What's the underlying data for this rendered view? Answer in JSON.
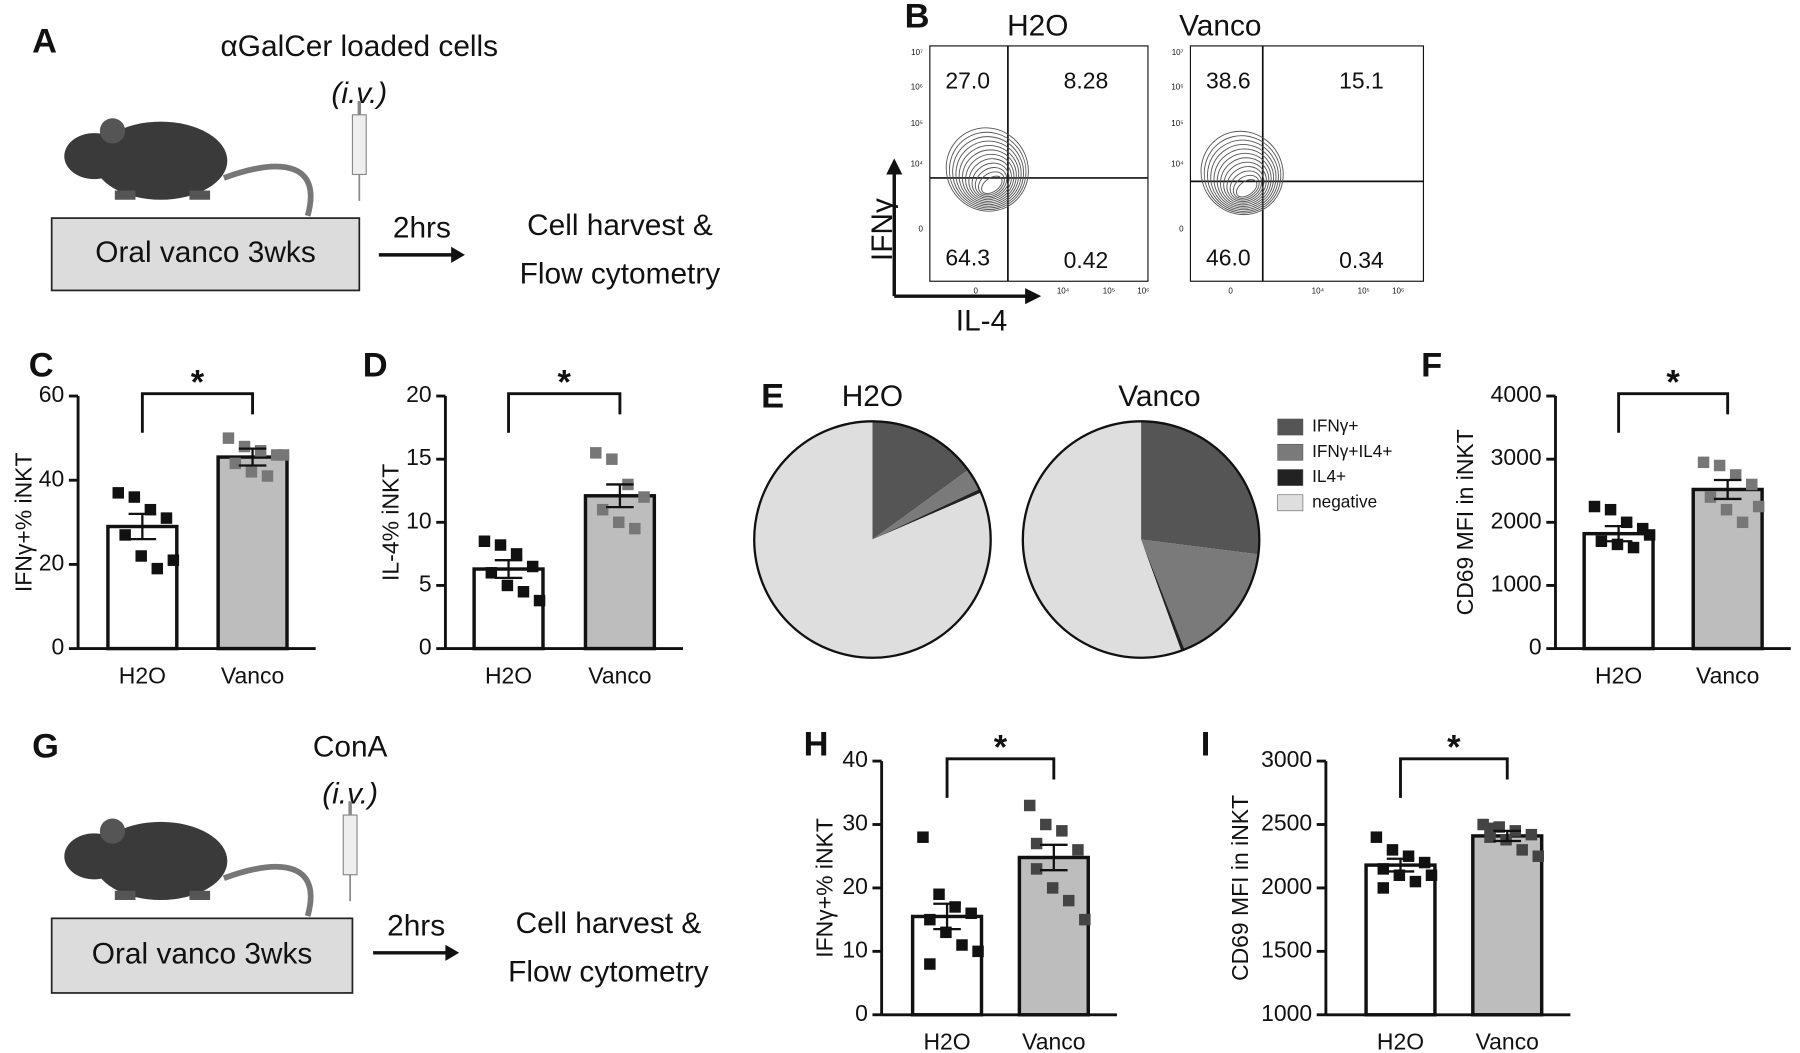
{
  "panel_labels": [
    "A",
    "B",
    "C",
    "D",
    "E",
    "F",
    "G",
    "H",
    "I"
  ],
  "diagrams": [
    {
      "injection": "αGalCer loaded cells",
      "route": "(i.v.)",
      "treatment": "Oral vanco 3wks",
      "time": "2hrs",
      "readout": [
        "Cell harvest &",
        "Flow cytometry"
      ]
    },
    {
      "injection": "ConA",
      "route": "(i.v.)",
      "treatment": "Oral vanco 3wks",
      "time": "2hrs",
      "readout": [
        "Cell harvest &",
        "Flow cytometry"
      ]
    }
  ],
  "flow": {
    "y_label": "IFNγ",
    "x_label": "IL-4",
    "yticks": [
      "10⁷",
      "10⁶",
      "10⁵",
      "10⁴",
      "0"
    ],
    "xticks": [
      "0",
      "10⁴",
      "10⁵",
      "10⁶"
    ],
    "plots": [
      {
        "title": "H2O",
        "quadrants": [
          "27.0",
          "8.28",
          "64.3",
          "0.42"
        ]
      },
      {
        "title": "Vanco",
        "quadrants": [
          "38.6",
          "15.1",
          "46.0",
          "0.34"
        ]
      }
    ]
  },
  "chart_data": [
    {
      "type": "bar",
      "y_label": "IFNγ+% iNKT",
      "categories": [
        "H2O",
        "Vanco"
      ],
      "values": [
        29,
        45.5
      ],
      "errors": [
        3,
        2
      ],
      "points": [
        [
          37,
          36,
          33,
          31,
          27,
          22,
          19,
          21
        ],
        [
          50,
          48,
          47,
          46,
          44,
          42,
          41,
          46
        ]
      ],
      "colors": [
        "#ffffff",
        "#bdbdbd"
      ],
      "point_colors": [
        "#111111",
        "#777777"
      ],
      "ylim": [
        0,
        60
      ],
      "yticks": [
        0,
        20,
        40,
        60
      ],
      "significance": "*"
    },
    {
      "type": "bar",
      "y_label": "IL-4% iNKT",
      "categories": [
        "H2O",
        "Vanco"
      ],
      "values": [
        6.3,
        12.1
      ],
      "errors": [
        0.7,
        0.9
      ],
      "points": [
        [
          8.5,
          8.2,
          7.5,
          6.5,
          6,
          5,
          4.5,
          3.8
        ],
        [
          15.5,
          15,
          13,
          12,
          11,
          10,
          9.5
        ]
      ],
      "colors": [
        "#ffffff",
        "#bdbdbd"
      ],
      "point_colors": [
        "#111111",
        "#777777"
      ],
      "ylim": [
        0,
        20
      ],
      "yticks": [
        0,
        5,
        10,
        15,
        20
      ],
      "significance": "*"
    },
    {
      "type": "pie",
      "labels": [
        "IFNγ+",
        "IFNγ+IL4+",
        "IL4+",
        "negative"
      ],
      "colors": [
        "#555555",
        "#7a7a7a",
        "#222222",
        "#dedede"
      ],
      "pies": [
        {
          "title": "H2O",
          "values": [
            15,
            3,
            0.5,
            81.5
          ]
        },
        {
          "title": "Vanco",
          "values": [
            27,
            17,
            0.5,
            55.5
          ]
        }
      ]
    },
    {
      "type": "bar",
      "y_label": "CD69 MFI in iNKT",
      "categories": [
        "H2O",
        "Vanco"
      ],
      "values": [
        1820,
        2520
      ],
      "errors": [
        120,
        150
      ],
      "points": [
        [
          2250,
          2200,
          2000,
          1900,
          1700,
          1650,
          1600,
          1800
        ],
        [
          2950,
          2900,
          2750,
          2600,
          2400,
          2200,
          2000,
          2250
        ]
      ],
      "colors": [
        "#ffffff",
        "#bdbdbd"
      ],
      "point_colors": [
        "#111111",
        "#777777"
      ],
      "ylim": [
        0,
        4000
      ],
      "yticks": [
        0,
        1000,
        2000,
        3000,
        4000
      ],
      "significance": "*"
    },
    {
      "type": "bar",
      "y_label": "IFNγ+% iNKT",
      "categories": [
        "H2O",
        "Vanco"
      ],
      "values": [
        15.5,
        24.8
      ],
      "errors": [
        2,
        2
      ],
      "points": [
        [
          28,
          19,
          17,
          16,
          15,
          13,
          11,
          10,
          8
        ],
        [
          33,
          30,
          29,
          26,
          23,
          20,
          18,
          15,
          27
        ]
      ],
      "colors": [
        "#ffffff",
        "#bdbdbd"
      ],
      "point_colors": [
        "#111111",
        "#444444"
      ],
      "ylim": [
        0,
        40
      ],
      "yticks": [
        0,
        10,
        20,
        30,
        40
      ],
      "significance": "*"
    },
    {
      "type": "bar",
      "y_label": "CD69 MFI in iNKT",
      "categories": [
        "H2O",
        "Vanco"
      ],
      "values": [
        2180,
        2410
      ],
      "errors": [
        50,
        40
      ],
      "points": [
        [
          2400,
          2300,
          2250,
          2200,
          2150,
          2100,
          2050,
          2100,
          2000
        ],
        [
          2500,
          2480,
          2450,
          2420,
          2400,
          2380,
          2300,
          2250,
          2470
        ]
      ],
      "colors": [
        "#ffffff",
        "#bdbdbd"
      ],
      "point_colors": [
        "#111111",
        "#444444"
      ],
      "ylim": [
        1000,
        3000
      ],
      "yticks": [
        1000,
        1500,
        2000,
        2500,
        3000
      ],
      "significance": "*"
    }
  ]
}
